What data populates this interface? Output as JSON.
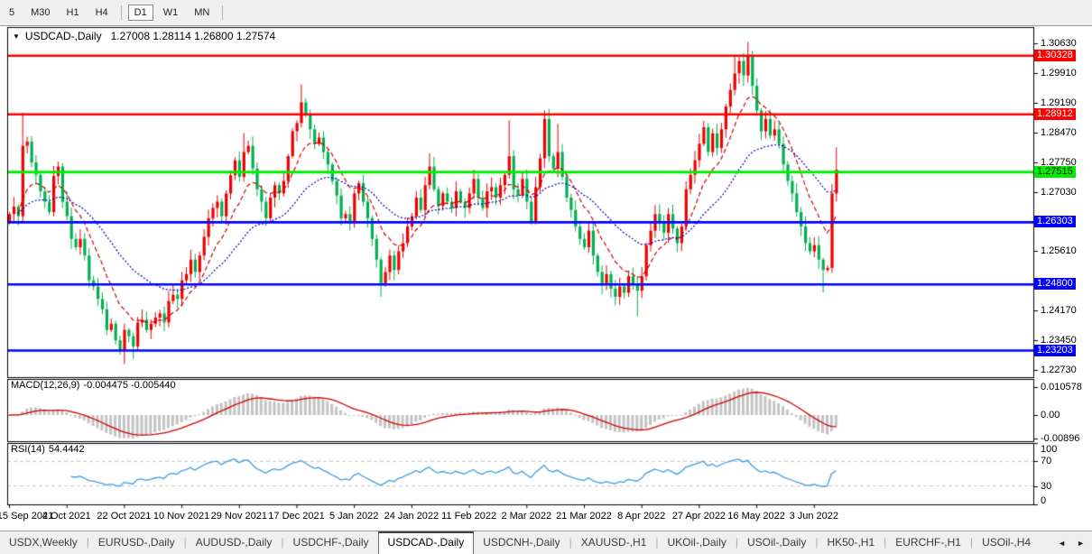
{
  "toolbar": {
    "timeframes": [
      {
        "label": "5",
        "active": false
      },
      {
        "label": "M30",
        "active": false
      },
      {
        "label": "H1",
        "active": false
      },
      {
        "label": "H4",
        "active": false
      },
      {
        "label": "D1",
        "active": true
      },
      {
        "label": "W1",
        "active": false
      },
      {
        "label": "MN",
        "active": false
      }
    ]
  },
  "chart": {
    "title": {
      "dropdown_icon": "▼",
      "symbol": "USDCAD-,Daily",
      "ohlc": "1.27008 1.28114 1.26800 1.27574"
    },
    "price_axis": {
      "min": 1.2256,
      "max": 1.3102,
      "ticks": [
        1.3063,
        1.2991,
        1.2919,
        1.2847,
        1.2775,
        1.2703,
        1.2561,
        1.2417,
        1.2345,
        1.2273
      ]
    },
    "levels": [
      {
        "price": 1.30328,
        "label": "1.30328",
        "color": "#FF0000",
        "badge_text": "#FFFFFF"
      },
      {
        "price": 1.28912,
        "label": "1.28912",
        "color": "#FF0000",
        "badge_text": "#FFFFFF"
      },
      {
        "price": 1.27515,
        "label": "1.27515",
        "color": "#00EE00",
        "badge_text": "#000000"
      },
      {
        "price": 1.26303,
        "label": "1.26303",
        "color": "#0000FF",
        "badge_text": "#FFFFFF"
      },
      {
        "price": 1.248,
        "label": "1.24800",
        "color": "#0000FF",
        "badge_text": "#FFFFFF"
      },
      {
        "price": 1.23203,
        "label": "1.23203",
        "color": "#0000FF",
        "badge_text": "#FFFFFF"
      }
    ],
    "x_labels": [
      "15 Sep 2021",
      "4 Oct 2021",
      "22 Oct 2021",
      "10 Nov 2021",
      "29 Nov 2021",
      "17 Dec 2021",
      "5 Jan 2022",
      "24 Jan 2022",
      "11 Feb 2022",
      "2 Mar 2022",
      "21 Mar 2022",
      "8 Apr 2022",
      "27 Apr 2022",
      "16 May 2022",
      "3 Jun 2022"
    ],
    "label_step": 13,
    "candles": {
      "first_open": 1.263,
      "closes": [
        1.265,
        1.2668,
        1.2645,
        1.2815,
        1.2825,
        1.2775,
        1.2745,
        1.2705,
        1.268,
        1.2655,
        1.2742,
        1.2765,
        1.268,
        1.2645,
        1.259,
        1.257,
        1.259,
        1.255,
        1.249,
        1.2475,
        1.2445,
        1.242,
        1.237,
        1.2385,
        1.2345,
        1.232,
        1.237,
        1.2355,
        1.233,
        1.2388,
        1.2395,
        1.237,
        1.2385,
        1.24,
        1.241,
        1.2388,
        1.244,
        1.2455,
        1.2445,
        1.249,
        1.2505,
        1.254,
        1.251,
        1.255,
        1.2595,
        1.264,
        1.2665,
        1.268,
        1.2645,
        1.27,
        1.2744,
        1.278,
        1.274,
        1.28,
        1.2815,
        1.276,
        1.271,
        1.268,
        1.264,
        1.269,
        1.272,
        1.27,
        1.273,
        1.279,
        1.285,
        1.287,
        1.292,
        1.289,
        1.2855,
        1.282,
        1.2835,
        1.28,
        1.277,
        1.273,
        1.2695,
        1.264,
        1.265,
        1.263,
        1.27,
        1.2725,
        1.268,
        1.264,
        1.259,
        1.254,
        1.248,
        1.251,
        1.255,
        1.2515,
        1.256,
        1.258,
        1.262,
        1.2645,
        1.269,
        1.266,
        1.272,
        1.2765,
        1.271,
        1.267,
        1.27,
        1.268,
        1.2665,
        1.2705,
        1.268,
        1.2665,
        1.27,
        1.2735,
        1.269,
        1.2665,
        1.2705,
        1.2715,
        1.269,
        1.272,
        1.2745,
        1.279,
        1.271,
        1.2695,
        1.2735,
        1.268,
        1.263,
        1.2715,
        1.2785,
        1.288,
        1.279,
        1.276,
        1.28,
        1.274,
        1.269,
        1.266,
        1.262,
        1.259,
        1.257,
        1.261,
        1.255,
        1.251,
        1.248,
        1.2505,
        1.247,
        1.245,
        1.2475,
        1.246,
        1.25,
        1.248,
        1.2465,
        1.25,
        1.2575,
        1.261,
        1.265,
        1.263,
        1.2605,
        1.265,
        1.2615,
        1.258,
        1.262,
        1.271,
        1.2745,
        1.278,
        1.282,
        1.286,
        1.28,
        1.2845,
        1.281,
        1.2855,
        1.291,
        1.295,
        1.299,
        1.302,
        1.2985,
        1.303,
        1.296,
        1.29,
        1.285,
        1.288,
        1.284,
        1.2855,
        1.282,
        1.277,
        1.273,
        1.27,
        1.2655,
        1.262,
        1.258,
        1.256,
        1.2575,
        1.254,
        1.2515,
        1.252,
        1.27,
        1.27574
      ],
      "wick_overrides": [
        [
          3,
          1.2895,
          null
        ],
        [
          11,
          1.2777,
          null
        ],
        [
          26,
          null,
          1.2288
        ],
        [
          28,
          null,
          1.23
        ],
        [
          53,
          1.2846,
          null
        ],
        [
          66,
          1.2964,
          null
        ],
        [
          84,
          null,
          1.245
        ],
        [
          95,
          1.2797,
          null
        ],
        [
          113,
          1.2877,
          null
        ],
        [
          121,
          1.2901,
          null
        ],
        [
          124,
          1.2868,
          null
        ],
        [
          137,
          null,
          1.243
        ],
        [
          142,
          null,
          1.2403
        ],
        [
          164,
          1.3035,
          null
        ],
        [
          167,
          1.3066,
          null
        ],
        [
          184,
          null,
          1.246
        ],
        [
          186,
          null,
          1.2508
        ],
        [
          187,
          1.28114,
          1.268
        ]
      ]
    },
    "colors": {
      "bull": "#EE0000",
      "bear": "#00B050",
      "ma_fast": "#D10000",
      "ma_slow": "#0000B4",
      "rsi_line": "#3E9DE5",
      "macd_hist": "#C3C3C3",
      "macd_signal": "#D10000",
      "guide_dash": "#C8C8C8"
    },
    "indicators": {
      "macd": {
        "name": "MACD(12,26,9)",
        "values": "-0.004475 -0.005440",
        "params": [
          12,
          26,
          9
        ],
        "axis_labels": [
          {
            "text": "0.010578",
            "value": 0.010578
          },
          {
            "text": "0.00",
            "value": 0
          },
          {
            "text": "-0.00896",
            "value": -0.00896
          }
        ]
      },
      "rsi": {
        "name": "RSI(14)",
        "value": "54.4442",
        "period": 14,
        "axis_labels": [
          {
            "text": "100",
            "value": 100
          },
          {
            "text": "70",
            "value": 70
          },
          {
            "text": "30",
            "value": 30
          },
          {
            "text": "0",
            "value": 0
          }
        ],
        "guide_levels": [
          70,
          30
        ]
      }
    }
  },
  "tabbar": {
    "tabs": [
      {
        "label": "USDX,Weekly",
        "active": false
      },
      {
        "label": "EURUSD-,Daily",
        "active": false
      },
      {
        "label": "AUDUSD-,Daily",
        "active": false
      },
      {
        "label": "USDCHF-,Daily",
        "active": false
      },
      {
        "label": "USDCAD-,Daily",
        "active": true
      },
      {
        "label": "USDCNH-,Daily",
        "active": false
      },
      {
        "label": "XAUUSD-,H1",
        "active": false
      },
      {
        "label": "UKOil-,Daily",
        "active": false
      },
      {
        "label": "USOil-,Daily",
        "active": false
      },
      {
        "label": "HK50-,H1",
        "active": false
      },
      {
        "label": "EURCHF-,H1",
        "active": false
      },
      {
        "label": "USOil-,H4",
        "active": false
      }
    ],
    "arrow_left": "◄",
    "arrow_right": "►"
  }
}
